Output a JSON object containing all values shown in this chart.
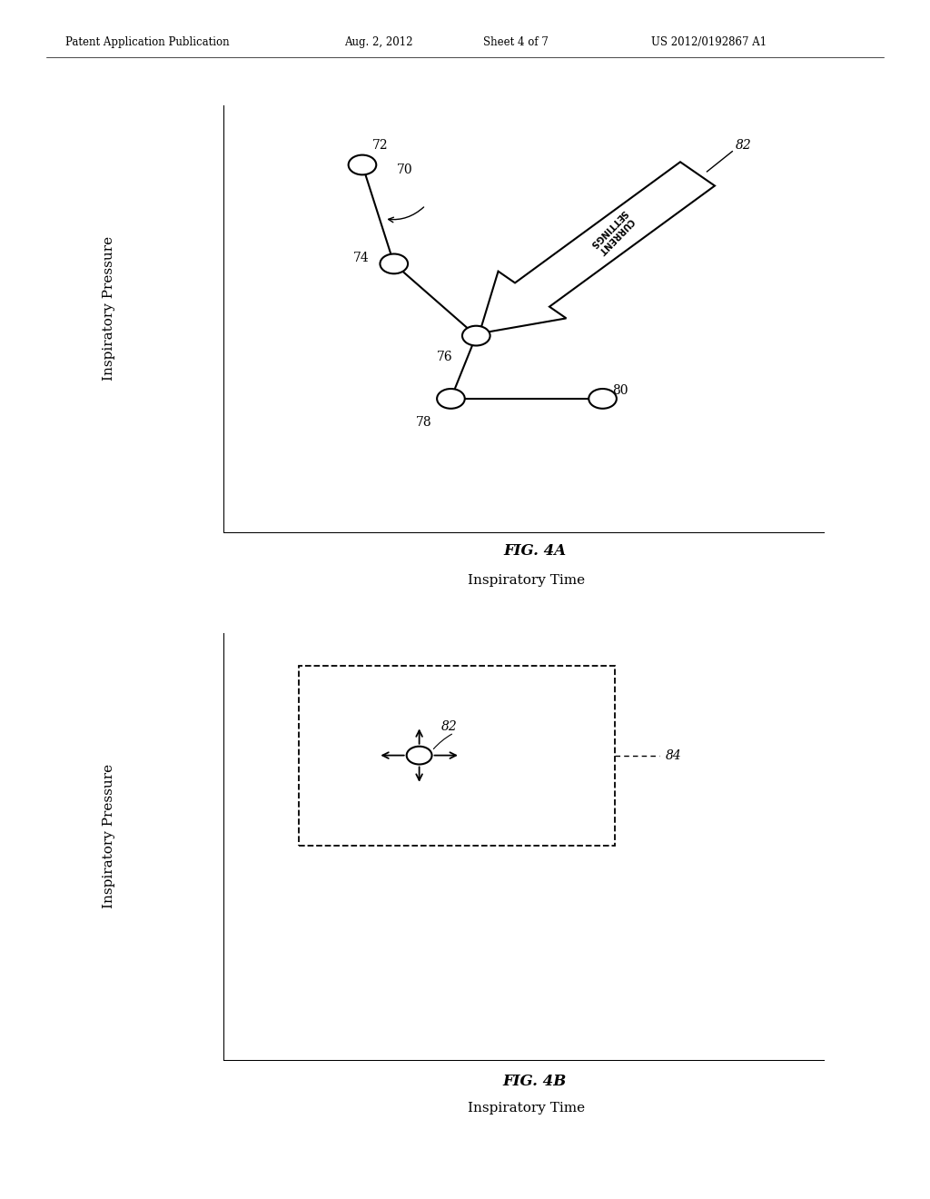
{
  "bg_color": "#ffffff",
  "header_text": "Patent Application Publication",
  "header_date": "Aug. 2, 2012",
  "header_sheet": "Sheet 4 of 7",
  "header_patent": "US 2012/0192867 A1",
  "fig4a_title": "FIG. 4A",
  "fig4b_title": "FIG. 4B",
  "fig4a_xlabel": "Inspiratory Time",
  "fig4a_ylabel": "Inspiratory Pressure",
  "fig4b_xlabel": "Inspiratory Time",
  "fig4b_ylabel": "Inspiratory Pressure",
  "line_color": "#000000",
  "node_fc": "#ffffff",
  "node_ec": "#000000"
}
